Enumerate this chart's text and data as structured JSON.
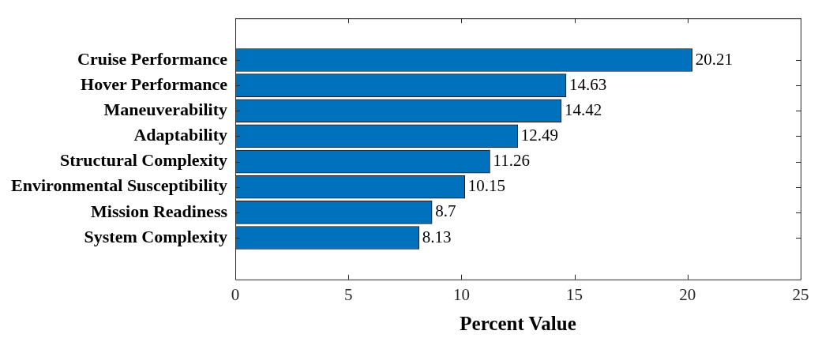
{
  "chart_data": {
    "type": "bar",
    "orientation": "horizontal",
    "xlabel": "Percent Value",
    "categories": [
      "Cruise Performance",
      "Hover Performance",
      "Maneuverability",
      "Adaptability",
      "Structural Complexity",
      "Environmental Susceptibility",
      "Mission Readiness",
      "System Complexity"
    ],
    "values": [
      20.21,
      14.63,
      14.42,
      12.49,
      11.26,
      10.15,
      8.7,
      8.13
    ],
    "color": "#0072bd",
    "xlim": [
      0,
      25
    ],
    "xticks": [
      0,
      5,
      10,
      15,
      20,
      25
    ],
    "grid": false,
    "legend": false,
    "data_labels": true
  }
}
